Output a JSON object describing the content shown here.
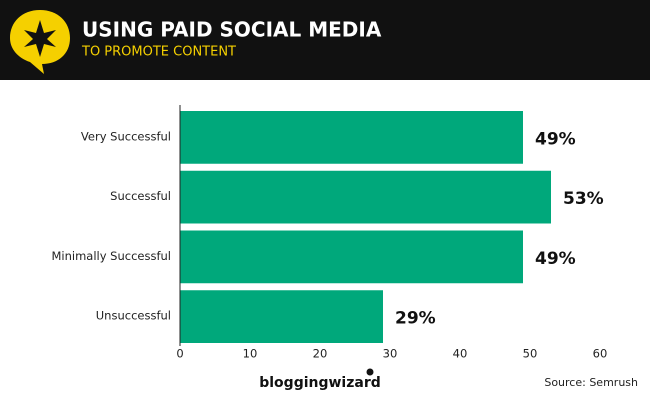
{
  "chart_data": {
    "type": "bar",
    "orientation": "horizontal",
    "title": "USING PAID SOCIAL MEDIA",
    "subtitle": "TO PROMOTE CONTENT",
    "categories": [
      "Very Successful",
      "Successful",
      "Minimally Successful",
      "Unsuccessful"
    ],
    "values": [
      49,
      53,
      49,
      29
    ],
    "value_labels": [
      "49%",
      "53%",
      "49%",
      "29%"
    ],
    "color": "#00a87b",
    "xlim": [
      0,
      60
    ],
    "xticks": [
      0,
      10,
      20,
      30,
      40,
      50,
      60
    ],
    "brand": "bloggingwizard",
    "source": "Source: Semrush"
  }
}
